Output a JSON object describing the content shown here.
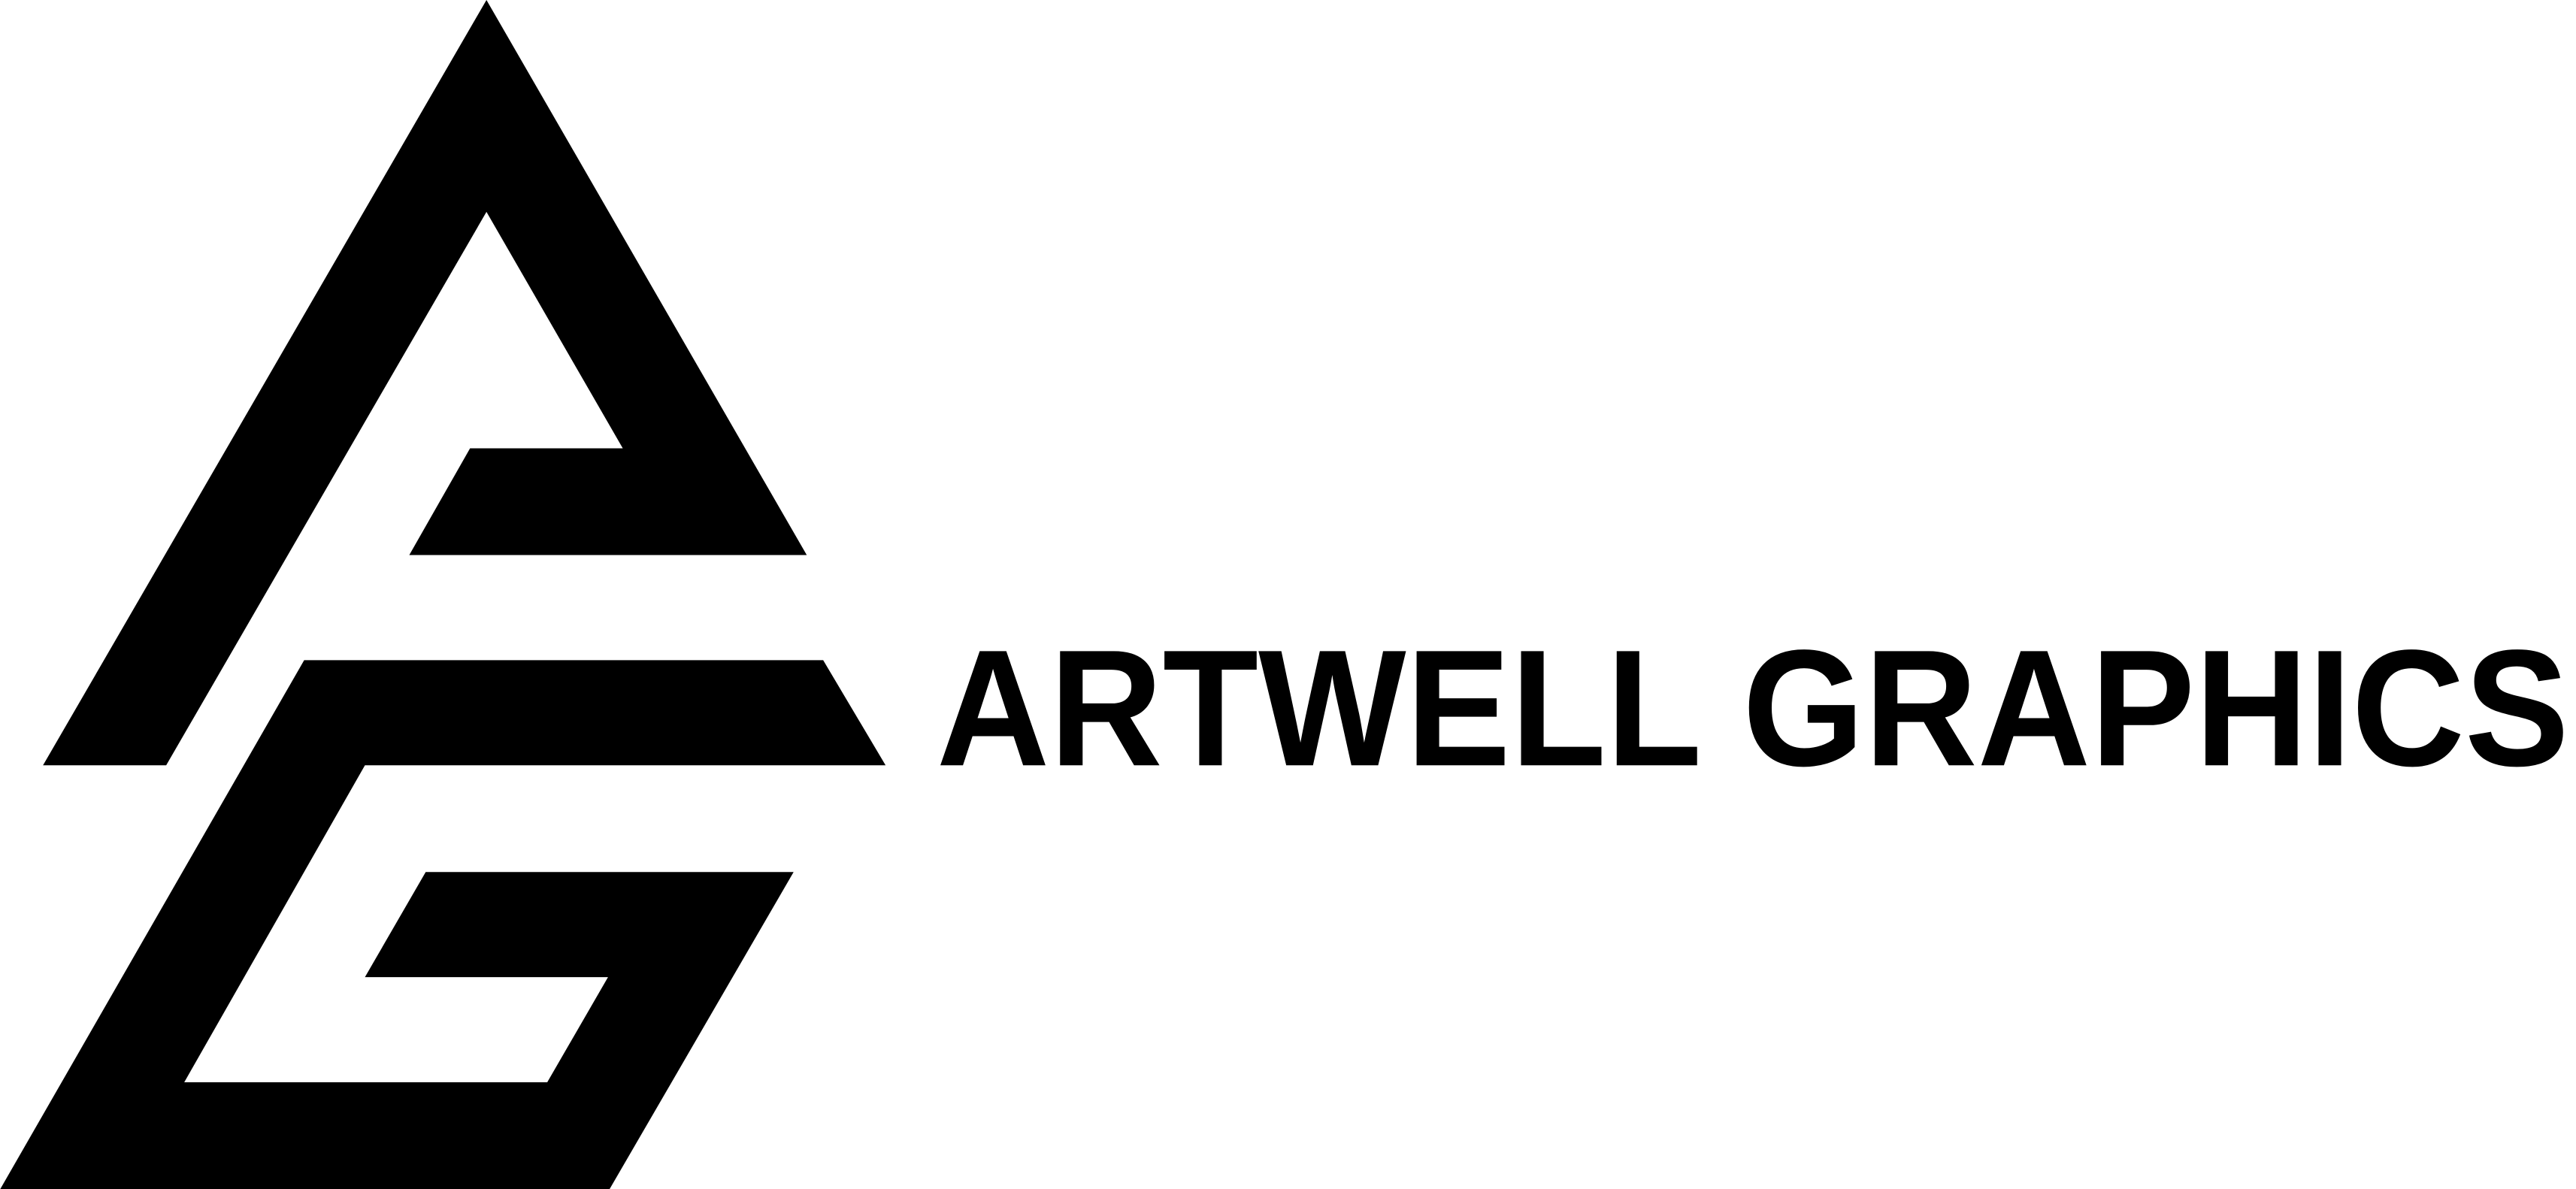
{
  "logo": {
    "text": "ARTWELL GRAPHICS"
  }
}
